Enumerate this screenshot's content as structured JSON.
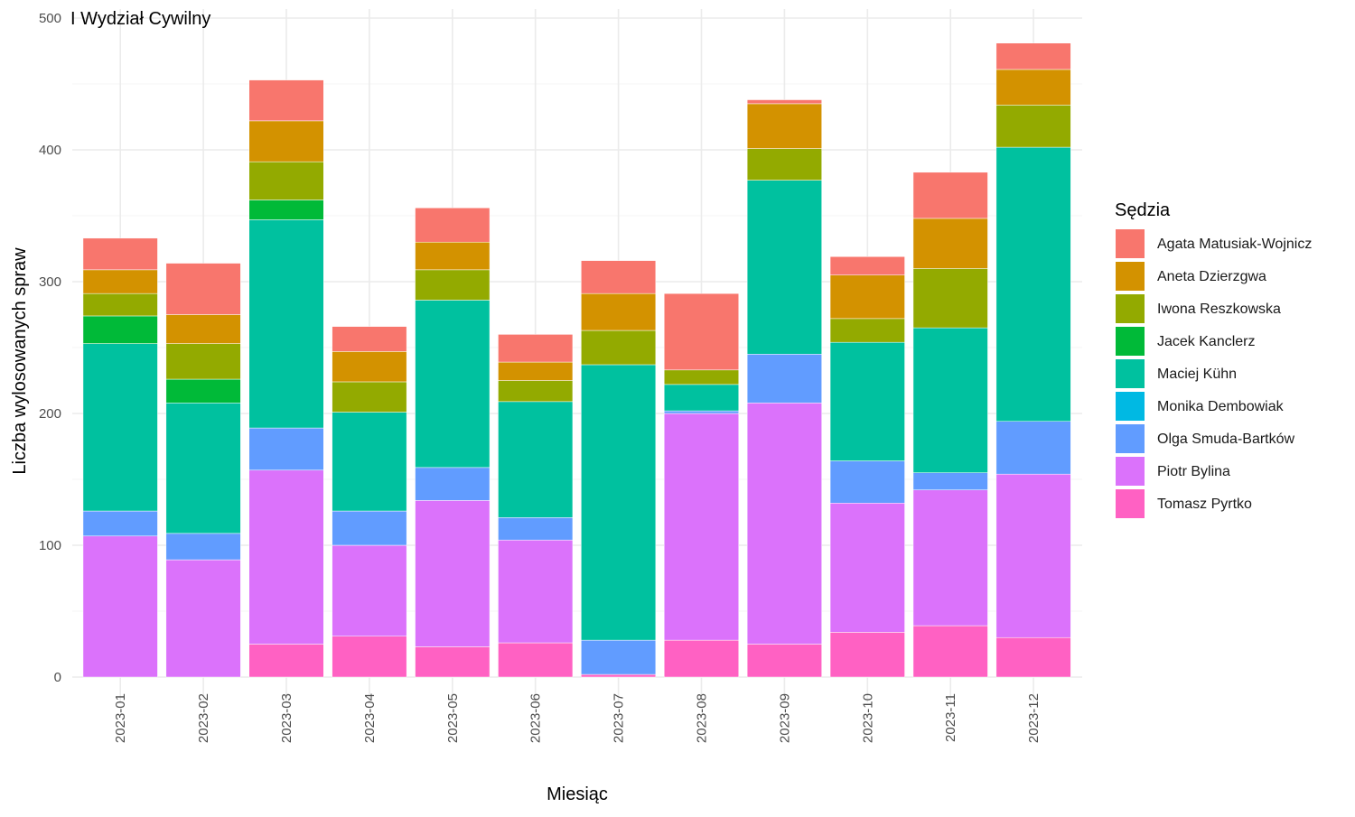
{
  "chart_data": {
    "type": "bar",
    "stacked": true,
    "title": "I Wydział Cywilny",
    "xlabel": "Miesiąc",
    "ylabel": "Liczba wylosowanych spraw",
    "ylim": [
      0,
      500
    ],
    "yticks": [
      0,
      100,
      200,
      300,
      400,
      500
    ],
    "grid": true,
    "legend_title": "Sędzia",
    "legend_position": "right",
    "categories": [
      "2023-01",
      "2023-02",
      "2023-03",
      "2023-04",
      "2023-05",
      "2023-06",
      "2023-07",
      "2023-08",
      "2023-09",
      "2023-10",
      "2023-11",
      "2023-12"
    ],
    "series": [
      {
        "name": "Tomasz Pyrtko",
        "color": "#FF61C3",
        "values": [
          0,
          0,
          25,
          31,
          23,
          26,
          2,
          28,
          25,
          34,
          39,
          30
        ]
      },
      {
        "name": "Piotr Bylina",
        "color": "#DB72FB",
        "values": [
          107,
          89,
          132,
          69,
          111,
          78,
          0,
          172,
          183,
          98,
          103,
          124
        ]
      },
      {
        "name": "Olga Smuda-Bartków",
        "color": "#619CFF",
        "values": [
          19,
          20,
          32,
          26,
          25,
          17,
          26,
          2,
          37,
          32,
          13,
          40
        ]
      },
      {
        "name": "Monika Dembowiak",
        "color": "#00B9E3",
        "values": [
          0,
          0,
          0,
          0,
          0,
          0,
          0,
          0,
          0,
          0,
          0,
          0
        ]
      },
      {
        "name": "Maciej Kühn",
        "color": "#00C19F",
        "values": [
          127,
          99,
          158,
          75,
          127,
          88,
          209,
          20,
          132,
          90,
          110,
          208
        ]
      },
      {
        "name": "Jacek Kanclerz",
        "color": "#00BA38",
        "values": [
          21,
          18,
          15,
          0,
          0,
          0,
          0,
          0,
          0,
          0,
          0,
          0
        ]
      },
      {
        "name": "Iwona Reszkowska",
        "color": "#93AA00",
        "values": [
          17,
          27,
          29,
          23,
          23,
          16,
          26,
          11,
          24,
          18,
          45,
          32
        ]
      },
      {
        "name": "Aneta Dzierzgwa",
        "color": "#D39200",
        "values": [
          18,
          22,
          31,
          23,
          21,
          14,
          28,
          0,
          34,
          33,
          38,
          27
        ]
      },
      {
        "name": "Agata Matusiak-Wojnicz",
        "color": "#F8766D",
        "values": [
          24,
          39,
          31,
          19,
          26,
          21,
          25,
          58,
          3,
          14,
          35,
          20
        ]
      }
    ]
  }
}
